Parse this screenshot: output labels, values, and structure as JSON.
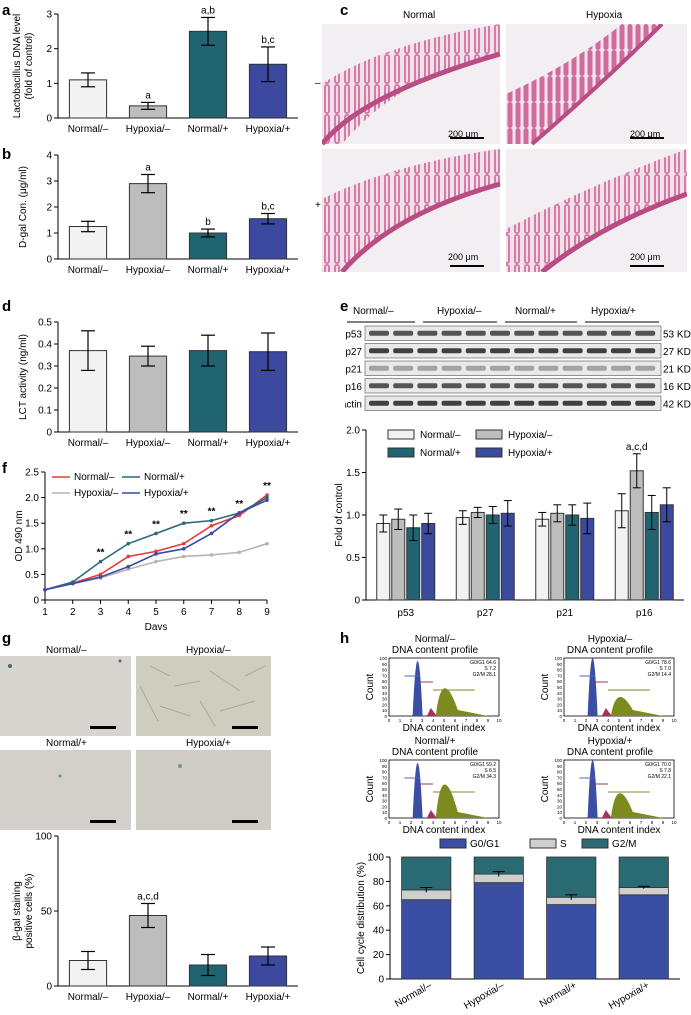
{
  "colors": {
    "normal_minus": "#f2f2f2",
    "hypoxia_minus": "#bdbdbd",
    "normal_plus": "#1f6470",
    "hypoxia_plus": "#3b4a9e",
    "line_red": "#e33b3b",
    "line_teal": "#2b6b74",
    "line_grey": "#b5b5b5",
    "line_blue": "#3c4aa8",
    "g0g1": "#3a4ea3",
    "s_phase": "#cfcfcf",
    "g2m": "#2a6a72",
    "he_pink": "#d98aae",
    "sa_bgal_bg": "#d8d4cd"
  },
  "panels": {
    "a": "a",
    "b": "b",
    "c": "c",
    "d": "d",
    "e": "e",
    "f": "f",
    "g": "g",
    "h": "h"
  },
  "panel_c": {
    "col_labels": [
      "Normal",
      "Hypoxia"
    ],
    "row_labels": [
      "–",
      "+"
    ],
    "scale_bar": "200 μm"
  },
  "panel_e_blot": {
    "group_labels": [
      "Normal/–",
      "Hypoxia/–",
      "Normal/+",
      "Hypoxia/+"
    ],
    "proteins": [
      "p53",
      "p27",
      "p21",
      "p16",
      "β-actin"
    ],
    "sizes": [
      "53 KD",
      "27 KD",
      "21 KD",
      "16 KD",
      "42 KD"
    ]
  },
  "panel_g_photos": {
    "labels": [
      "Normal/–",
      "Hypoxia/–",
      "Normal/+",
      "Hypoxia/+"
    ]
  },
  "panel_h_flow": {
    "titles": [
      "Normal/–",
      "Hypoxia/–",
      "Normal/+",
      "Hypoxia/+"
    ],
    "subtitle": "DNA content profile",
    "xlabel": "DNA content index",
    "ylabel": "Count",
    "stats": [
      [
        "G0/G1 64.6",
        "S 7.2",
        "G2/M 28.1"
      ],
      [
        "G0/G1 78.6",
        "S 7.0",
        "G2/M 14.4"
      ],
      [
        "G0/G1 59.2",
        "S 6.5",
        "G2/M 34.3"
      ],
      [
        "G0/G1 70.0",
        "S 7.8",
        "G2/M 22.1"
      ]
    ],
    "x_ticks": [
      "0",
      "1",
      "2",
      "3",
      "4",
      "5",
      "6",
      "7",
      "8",
      "9",
      "10"
    ],
    "y_ticks": [
      "0",
      "10",
      "20",
      "30",
      "40",
      "50",
      "60",
      "70",
      "80",
      "90",
      "100"
    ]
  },
  "chart_data": [
    {
      "id": "a",
      "type": "bar",
      "categories": [
        "Normal/–",
        "Hypoxia/–",
        "Normal/+",
        "Hypoxia/+"
      ],
      "values": [
        1.1,
        0.35,
        2.5,
        1.55
      ],
      "errors": [
        0.2,
        0.1,
        0.4,
        0.5
      ],
      "annotations": [
        "",
        "a",
        "a,b",
        "b,c"
      ],
      "ylabel": "Lactobacillus DNA level\n(fold of control)",
      "ylim": [
        0,
        3
      ],
      "yticks": [
        "0",
        "1",
        "2",
        "3"
      ]
    },
    {
      "id": "b",
      "type": "bar",
      "categories": [
        "Normal/–",
        "Hypoxia/–",
        "Normal/+",
        "Hypoxia/+"
      ],
      "values": [
        1.25,
        2.9,
        1.0,
        1.55
      ],
      "errors": [
        0.2,
        0.35,
        0.15,
        0.2
      ],
      "annotations": [
        "",
        "a",
        "b",
        "b,c"
      ],
      "ylabel": "D-gal Con. (μg/ml)",
      "ylim": [
        0,
        4
      ],
      "yticks": [
        "0",
        "1",
        "2",
        "3",
        "4"
      ]
    },
    {
      "id": "d",
      "type": "bar",
      "categories": [
        "Normal/–",
        "Hypoxia/–",
        "Normal/+",
        "Hypoxia/+"
      ],
      "values": [
        0.37,
        0.345,
        0.37,
        0.365
      ],
      "errors": [
        0.09,
        0.045,
        0.07,
        0.085
      ],
      "annotations": [
        "",
        "",
        "",
        ""
      ],
      "ylabel": "LCT activity (ng/ml)",
      "ylim": [
        0,
        0.5
      ],
      "yticks": [
        "0",
        "0.1",
        "0.2",
        "0.3",
        "0.4",
        "0.5"
      ]
    },
    {
      "id": "e",
      "type": "bar",
      "categories": [
        "p53",
        "p27",
        "p21",
        "p16"
      ],
      "series": [
        {
          "name": "Normal/–",
          "values": [
            0.9,
            0.97,
            0.95,
            1.05
          ],
          "errors": [
            0.1,
            0.08,
            0.08,
            0.2
          ]
        },
        {
          "name": "Hypoxia/–",
          "values": [
            0.95,
            1.03,
            1.02,
            1.52
          ],
          "errors": [
            0.12,
            0.06,
            0.1,
            0.2
          ]
        },
        {
          "name": "Normal/+",
          "values": [
            0.85,
            1.0,
            1.0,
            1.03
          ],
          "errors": [
            0.15,
            0.1,
            0.12,
            0.2
          ]
        },
        {
          "name": "Hypoxia/+",
          "values": [
            0.9,
            1.02,
            0.96,
            1.12
          ],
          "errors": [
            0.12,
            0.15,
            0.18,
            0.2
          ]
        }
      ],
      "annotations": [
        {
          "category": "p16",
          "series": "Hypoxia/–",
          "text": "a,c,d"
        }
      ],
      "ylabel": "Fold of control",
      "ylim": [
        0,
        2.0
      ],
      "yticks": [
        "0",
        "0.5",
        "1.0",
        "1.5",
        "2.0"
      ],
      "legend": "top"
    },
    {
      "id": "f",
      "type": "line",
      "x": [
        1,
        2,
        3,
        4,
        5,
        6,
        7,
        8,
        9
      ],
      "series": [
        {
          "name": "Normal/–",
          "values": [
            0.2,
            0.33,
            0.5,
            0.85,
            0.95,
            1.1,
            1.45,
            1.65,
            2.05
          ]
        },
        {
          "name": "Hypoxia/–",
          "values": [
            0.2,
            0.32,
            0.43,
            0.6,
            0.75,
            0.85,
            0.88,
            0.93,
            1.1
          ]
        },
        {
          "name": "Normal/+",
          "values": [
            0.2,
            0.35,
            0.75,
            1.1,
            1.3,
            1.5,
            1.55,
            1.7,
            2.0
          ]
        },
        {
          "name": "Hypoxia/+",
          "values": [
            0.2,
            0.32,
            0.45,
            0.65,
            0.9,
            1.0,
            1.3,
            1.7,
            1.95
          ]
        }
      ],
      "sig_labels": [
        "",
        "",
        "**",
        "**",
        "**",
        "**",
        "**",
        "**",
        "**"
      ],
      "xlabel": "Days",
      "ylabel": "OD 490 nm",
      "xlim": [
        1,
        9
      ],
      "ylim": [
        0,
        2.5
      ],
      "xticks": [
        "1",
        "2",
        "3",
        "4",
        "5",
        "6",
        "7",
        "8",
        "9"
      ],
      "yticks": [
        "0",
        "0.5",
        "1.0",
        "1.5",
        "2.0",
        "2.5"
      ],
      "legend": "top-left"
    },
    {
      "id": "g",
      "type": "bar",
      "categories": [
        "Normal/–",
        "Hypoxia/–",
        "Normal/+",
        "Hypoxia/+"
      ],
      "values": [
        17,
        47,
        14,
        20
      ],
      "errors": [
        6,
        8,
        7,
        6
      ],
      "annotations": [
        "",
        "a,c,d",
        "",
        ""
      ],
      "ylabel": "β-gal staining\npositive cells (%)",
      "ylim": [
        0,
        100
      ],
      "yticks": [
        "0",
        "50",
        "100"
      ]
    },
    {
      "id": "h",
      "type": "bar",
      "stacked": true,
      "categories": [
        "Normal/–",
        "Hypoxia/–",
        "Normal/+",
        "Hypoxia/+"
      ],
      "series": [
        {
          "name": "G0/G1",
          "values": [
            65,
            79,
            61,
            69
          ]
        },
        {
          "name": "S",
          "values": [
            8,
            7,
            6,
            6
          ]
        },
        {
          "name": "G2/M",
          "values": [
            27,
            14,
            33,
            25
          ]
        }
      ],
      "errors_top_cumulative": [
        2,
        2,
        2,
        1
      ],
      "ylabel": "Cell cycle distribution (%)",
      "ylim": [
        0,
        100
      ],
      "yticks": [
        "0",
        "20",
        "40",
        "60",
        "80",
        "100"
      ],
      "legend": "top"
    }
  ]
}
